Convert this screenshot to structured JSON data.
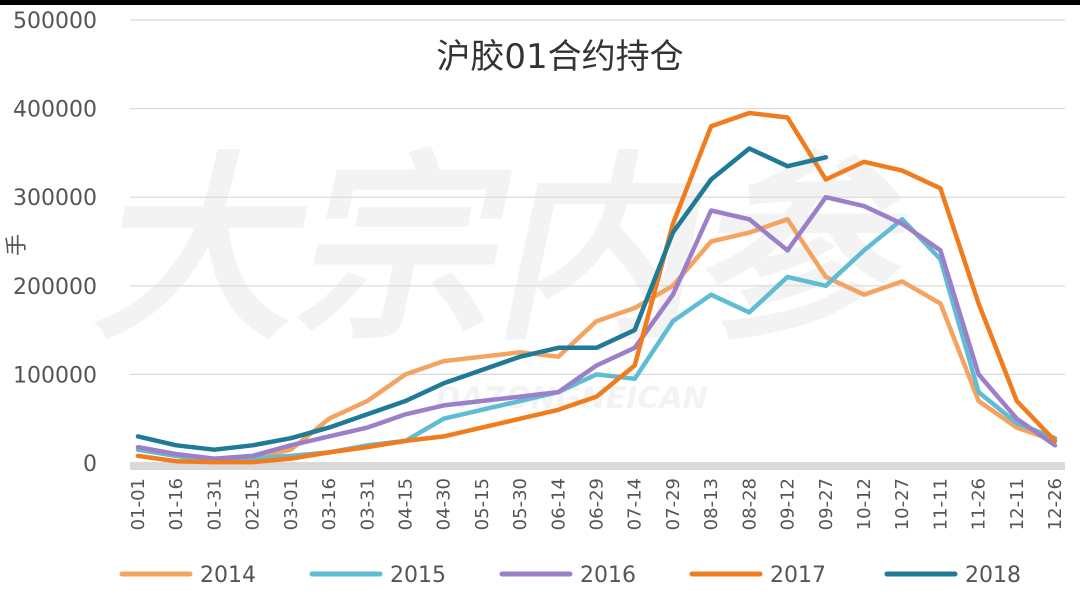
{
  "chart_data": {
    "type": "line",
    "title": "沪胶01合约持仓",
    "ylabel": "手",
    "xlabel": "",
    "ylim": [
      0,
      500000
    ],
    "yticks": [
      "0",
      "100000",
      "200000",
      "300000",
      "400000",
      "500000"
    ],
    "grid": true,
    "legend_position": "bottom",
    "x": [
      "01-01",
      "01-16",
      "01-31",
      "02-15",
      "03-01",
      "03-16",
      "03-31",
      "04-15",
      "04-30",
      "05-15",
      "05-30",
      "06-14",
      "06-29",
      "07-14",
      "07-29",
      "08-13",
      "08-28",
      "09-12",
      "09-27",
      "10-12",
      "10-27",
      "11-11",
      "11-26",
      "12-11",
      "12-26"
    ],
    "series": [
      {
        "name": "2014",
        "color": "#f4a460",
        "values": [
          15000,
          8000,
          2000,
          5000,
          15000,
          50000,
          70000,
          100000,
          115000,
          120000,
          125000,
          120000,
          160000,
          175000,
          200000,
          250000,
          260000,
          275000,
          210000,
          190000,
          205000,
          180000,
          70000,
          40000,
          25000
        ]
      },
      {
        "name": "2015",
        "color": "#5fbcd3",
        "values": [
          15000,
          8000,
          3000,
          5000,
          8000,
          12000,
          20000,
          25000,
          50000,
          60000,
          70000,
          80000,
          100000,
          95000,
          160000,
          190000,
          170000,
          210000,
          200000,
          240000,
          275000,
          230000,
          80000,
          45000,
          28000
        ]
      },
      {
        "name": "2016",
        "color": "#9b7fc9",
        "values": [
          18000,
          10000,
          5000,
          8000,
          20000,
          30000,
          40000,
          55000,
          65000,
          70000,
          75000,
          80000,
          110000,
          130000,
          190000,
          285000,
          275000,
          240000,
          300000,
          290000,
          270000,
          240000,
          100000,
          50000,
          20000
        ]
      },
      {
        "name": "2017",
        "color": "#f07c1e",
        "values": [
          8000,
          2000,
          1000,
          1000,
          5000,
          12000,
          18000,
          25000,
          30000,
          40000,
          50000,
          60000,
          75000,
          110000,
          270000,
          380000,
          395000,
          390000,
          320000,
          340000,
          330000,
          310000,
          180000,
          70000,
          25000
        ]
      },
      {
        "name": "2018",
        "color": "#1e7a96",
        "values": [
          30000,
          20000,
          15000,
          20000,
          28000,
          40000,
          55000,
          70000,
          90000,
          105000,
          120000,
          130000,
          130000,
          150000,
          260000,
          320000,
          355000,
          335000,
          345000,
          null,
          null,
          null,
          null,
          null,
          null
        ]
      }
    ]
  },
  "watermark": "大宗内参",
  "watermark_sub": "DAZONGNEICAN"
}
